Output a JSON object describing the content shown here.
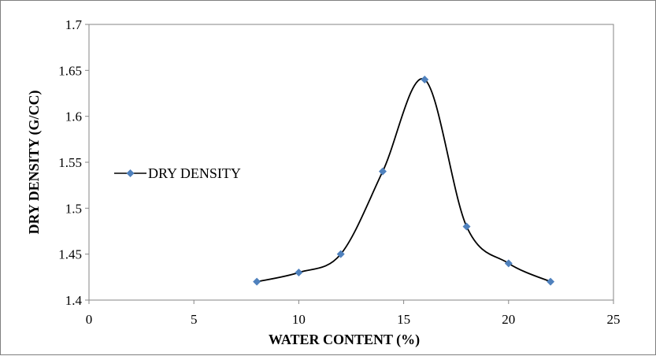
{
  "chart_data": {
    "type": "line",
    "title": "",
    "xlabel": "WATER CONTENT (%)",
    "ylabel": "DRY DENSITY (G/CC)",
    "xlim": [
      0,
      25
    ],
    "ylim": [
      1.4,
      1.7
    ],
    "x_ticks": [
      "0",
      "5",
      "10",
      "15",
      "20",
      "25"
    ],
    "y_ticks": [
      "1.4",
      "1.45",
      "1.5",
      "1.55",
      "1.6",
      "1.65",
      "1.7"
    ],
    "grid": false,
    "smooth": true,
    "legend_position": "left",
    "series": [
      {
        "name": "DRY DENSITY",
        "color": "#4f81bd",
        "line_color": "#000000",
        "marker": "diamond",
        "x": [
          8,
          10,
          12,
          14,
          16,
          18,
          20,
          22
        ],
        "y": [
          1.42,
          1.43,
          1.45,
          1.54,
          1.64,
          1.48,
          1.44,
          1.42
        ]
      }
    ]
  }
}
